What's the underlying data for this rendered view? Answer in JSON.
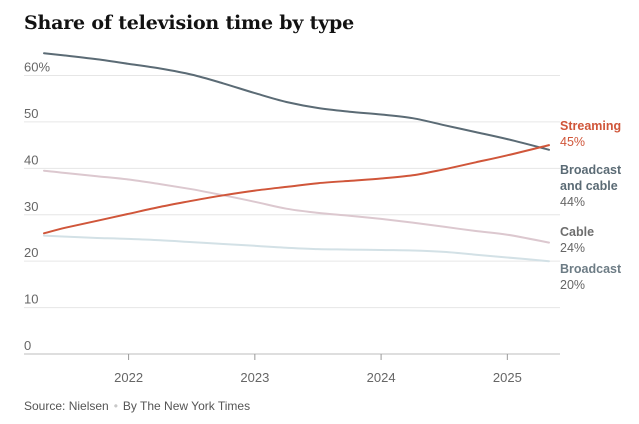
{
  "title": "Share of television time by type",
  "source": {
    "text": "Source: Nielsen",
    "separator": "•",
    "credit": "By The New York Times"
  },
  "chart_data": {
    "type": "line",
    "title": "Share of television time by type",
    "y_tick_labels": [
      "0",
      "10",
      "20",
      "30",
      "40",
      "50",
      "60%"
    ],
    "y_ticks": [
      0,
      10,
      20,
      30,
      40,
      50,
      60
    ],
    "ylim": [
      0,
      60
    ],
    "x_tick_labels": [
      "2022",
      "2023",
      "2024",
      "2025"
    ],
    "x_ticks": [
      2022,
      2023,
      2024,
      2025
    ],
    "xlim": [
      2021.33,
      2025.33
    ],
    "grid": true,
    "legend": "direct labels at right",
    "series": [
      {
        "name": "Broadcast and cable",
        "label_lines": [
          "Broadcast",
          "and cable"
        ],
        "value_label": "44%",
        "color": "#5b6b75",
        "x": [
          2021.33,
          2021.5,
          2021.75,
          2022.0,
          2022.25,
          2022.5,
          2022.75,
          2023.0,
          2023.25,
          2023.5,
          2023.75,
          2024.0,
          2024.25,
          2024.5,
          2024.75,
          2025.0,
          2025.33
        ],
        "y": [
          64.8,
          64.3,
          63.5,
          62.5,
          61.5,
          60.2,
          58.3,
          56.2,
          54.3,
          53.0,
          52.2,
          51.6,
          50.8,
          49.3,
          47.8,
          46.3,
          44.0
        ]
      },
      {
        "name": "Streaming",
        "label_lines": [
          "Streaming"
        ],
        "value_label": "45%",
        "color": "#d0563a",
        "x": [
          2021.33,
          2021.5,
          2021.75,
          2022.0,
          2022.25,
          2022.5,
          2022.75,
          2023.0,
          2023.25,
          2023.5,
          2023.75,
          2024.0,
          2024.25,
          2024.5,
          2024.75,
          2025.0,
          2025.33
        ],
        "y": [
          26.0,
          27.2,
          28.7,
          30.2,
          31.7,
          33.0,
          34.2,
          35.2,
          36.0,
          36.8,
          37.3,
          37.8,
          38.5,
          39.8,
          41.3,
          42.8,
          45.0
        ]
      },
      {
        "name": "Cable",
        "label_lines": [
          "Cable"
        ],
        "value_label": "24%",
        "color": "#dcc8cf",
        "x": [
          2021.33,
          2021.5,
          2021.75,
          2022.0,
          2022.25,
          2022.5,
          2022.75,
          2023.0,
          2023.25,
          2023.5,
          2023.75,
          2024.0,
          2024.25,
          2024.5,
          2024.75,
          2025.0,
          2025.33
        ],
        "y": [
          39.5,
          39.0,
          38.3,
          37.6,
          36.6,
          35.5,
          34.2,
          32.8,
          31.3,
          30.4,
          29.8,
          29.1,
          28.3,
          27.4,
          26.5,
          25.7,
          24.0
        ]
      },
      {
        "name": "Broadcast",
        "label_lines": [
          "Broadcast"
        ],
        "value_label": "20%",
        "color": "#d3e1e6",
        "x": [
          2021.33,
          2021.5,
          2021.75,
          2022.0,
          2022.25,
          2022.5,
          2022.75,
          2023.0,
          2023.25,
          2023.5,
          2023.75,
          2024.0,
          2024.25,
          2024.5,
          2024.75,
          2025.0,
          2025.33
        ],
        "y": [
          25.5,
          25.3,
          25.0,
          24.8,
          24.5,
          24.1,
          23.7,
          23.3,
          22.9,
          22.6,
          22.5,
          22.4,
          22.3,
          22.0,
          21.4,
          20.8,
          20.0
        ]
      }
    ]
  }
}
